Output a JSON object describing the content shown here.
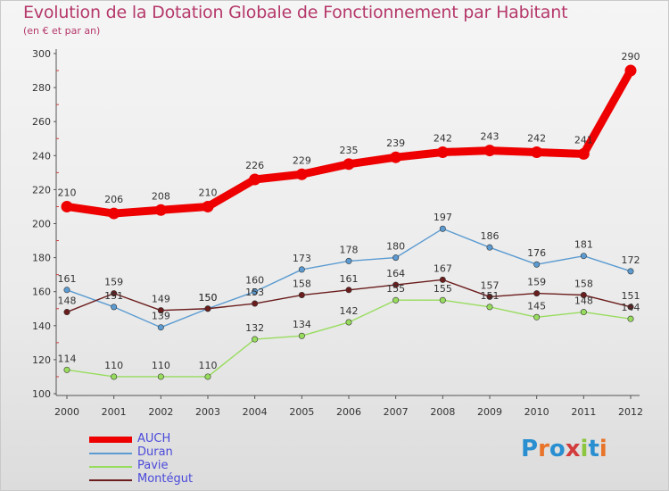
{
  "title": "Evolution de la Dotation Globale de Fonctionnement par Habitant",
  "subtitle": "(en € et par an)",
  "logo": {
    "text": "Proxiti",
    "letter_colors": [
      "#2a8fd0",
      "#e8742a",
      "#2a8fd0",
      "#d33c3c",
      "#8cc63e",
      "#2a8fd0",
      "#e8742a"
    ]
  },
  "chart_data": {
    "type": "line",
    "x": [
      "2000",
      "2001",
      "2002",
      "2003",
      "2004",
      "2005",
      "2006",
      "2007",
      "2008",
      "2009",
      "2010",
      "2011",
      "2012"
    ],
    "ylim": [
      100,
      300
    ],
    "yticks": [
      "100",
      "120",
      "140",
      "160",
      "180",
      "200",
      "220",
      "240",
      "260",
      "280",
      "300"
    ],
    "grid": false,
    "legend_position": "bottom-left",
    "series": [
      {
        "name": "AUCH",
        "color": "#ee0000",
        "values": [
          210,
          206,
          208,
          210,
          226,
          229,
          235,
          239,
          242,
          243,
          242,
          241,
          290
        ]
      },
      {
        "name": "Duran",
        "color": "#5b9bd1",
        "values": [
          161,
          151,
          139,
          150,
          160,
          173,
          178,
          180,
          197,
          186,
          176,
          181,
          172
        ]
      },
      {
        "name": "Pavie",
        "color": "#98dc5e",
        "values": [
          114,
          110,
          110,
          110,
          132,
          134,
          142,
          155,
          155,
          151,
          145,
          148,
          144
        ]
      },
      {
        "name": "Montégut",
        "color": "#6b1c1c",
        "values": [
          148,
          159,
          149,
          150,
          153,
          158,
          161,
          164,
          167,
          157,
          159,
          158,
          151
        ]
      }
    ]
  }
}
